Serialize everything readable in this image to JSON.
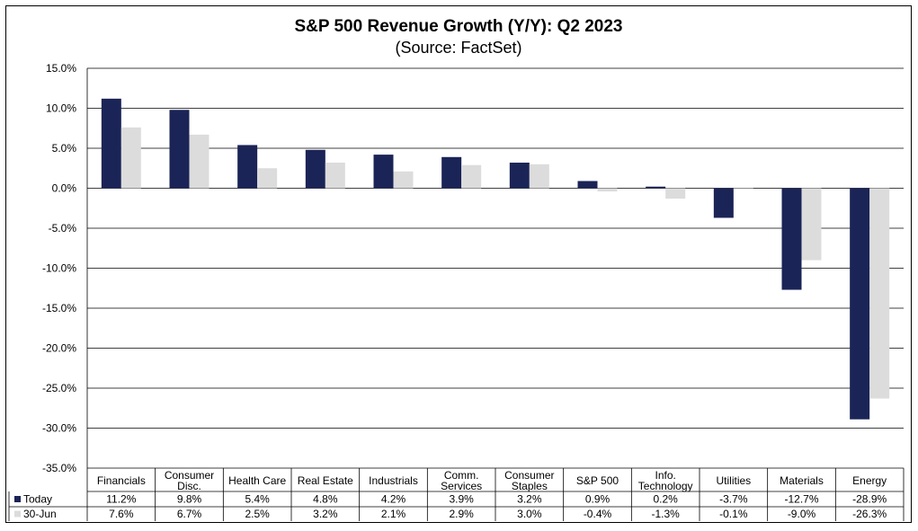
{
  "title": "S&P 500 Revenue Growth (Y/Y): Q2 2023",
  "subtitle": "(Source: FactSet)",
  "colors": {
    "today": "#1b2456",
    "jun30": "#dcdcdc",
    "grid": "#000000"
  },
  "chart_data": {
    "type": "bar",
    "title": "S&P 500 Revenue Growth (Y/Y): Q2 2023",
    "subtitle": "(Source: FactSet)",
    "categories": [
      [
        "Financials"
      ],
      [
        "Consumer",
        "Disc."
      ],
      [
        "Health Care"
      ],
      [
        "Real Estate"
      ],
      [
        "Industrials"
      ],
      [
        "Comm.",
        "Services"
      ],
      [
        "Consumer",
        "Staples"
      ],
      [
        "S&P 500"
      ],
      [
        "Info.",
        "Technology"
      ],
      [
        "Utilities"
      ],
      [
        "Materials"
      ],
      [
        "Energy"
      ]
    ],
    "series": [
      {
        "name": "Today",
        "values": [
          11.2,
          9.8,
          5.4,
          4.8,
          4.2,
          3.9,
          3.2,
          0.9,
          0.2,
          -3.7,
          -12.7,
          -28.9
        ],
        "labels": [
          "11.2%",
          "9.8%",
          "5.4%",
          "4.8%",
          "4.2%",
          "3.9%",
          "3.2%",
          "0.9%",
          "0.2%",
          "-3.7%",
          "-12.7%",
          "-28.9%"
        ]
      },
      {
        "name": "30-Jun",
        "values": [
          7.6,
          6.7,
          2.5,
          3.2,
          2.1,
          2.9,
          3.0,
          -0.4,
          -1.3,
          -0.1,
          -9.0,
          -26.3
        ],
        "labels": [
          "7.6%",
          "6.7%",
          "2.5%",
          "3.2%",
          "2.1%",
          "2.9%",
          "3.0%",
          "-0.4%",
          "-1.3%",
          "-0.1%",
          "-9.0%",
          "-26.3%"
        ]
      }
    ],
    "ylim": [
      -35,
      15
    ],
    "yticks": [
      15,
      10,
      5,
      0,
      -5,
      -10,
      -15,
      -20,
      -25,
      -30,
      -35
    ],
    "ytick_labels": [
      "15.0%",
      "10.0%",
      "5.0%",
      "0.0%",
      "-5.0%",
      "-10.0%",
      "-15.0%",
      "-20.0%",
      "-25.0%",
      "-30.0%",
      "-35.0%"
    ],
    "grid": true,
    "legend": "data-table-below"
  }
}
